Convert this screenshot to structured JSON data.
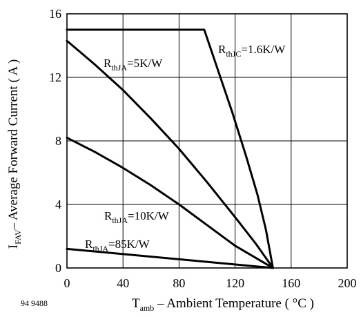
{
  "chart_data": {
    "type": "line",
    "figure_code": "94 9488",
    "xlabel": {
      "main": "T",
      "sub": "amb",
      "rest": " – Ambient Temperature ( °C )"
    },
    "ylabel": {
      "main": "I",
      "sub": "FAV",
      "rest": "– Average Forward Current ( A )"
    },
    "xlim": [
      0,
      200
    ],
    "ylim": [
      0,
      16
    ],
    "xticks": [
      0,
      40,
      80,
      120,
      160,
      200
    ],
    "yticks": [
      0,
      4,
      8,
      12,
      16
    ],
    "grid": true,
    "series": [
      {
        "label_main": "R",
        "label_sub": "thJC",
        "label_rest": "=1.6K/W",
        "points": [
          [
            0,
            15
          ],
          [
            98,
            15
          ],
          [
            108,
            12.4
          ],
          [
            118,
            9.8
          ],
          [
            128,
            7.0
          ],
          [
            136,
            4.6
          ],
          [
            142,
            2.4
          ],
          [
            147,
            0
          ]
        ]
      },
      {
        "label_main": "R",
        "label_sub": "thJA",
        "label_rest": "=5K/W",
        "points": [
          [
            0,
            14.3
          ],
          [
            20,
            12.8
          ],
          [
            40,
            11.2
          ],
          [
            60,
            9.4
          ],
          [
            80,
            7.5
          ],
          [
            100,
            5.4
          ],
          [
            120,
            3.2
          ],
          [
            135,
            1.5
          ],
          [
            147,
            0
          ]
        ]
      },
      {
        "label_main": "R",
        "label_sub": "thJA",
        "label_rest": "=10K/W",
        "points": [
          [
            0,
            8.2
          ],
          [
            20,
            7.3
          ],
          [
            40,
            6.3
          ],
          [
            60,
            5.2
          ],
          [
            80,
            4.0
          ],
          [
            100,
            2.7
          ],
          [
            120,
            1.4
          ],
          [
            147,
            0
          ]
        ]
      },
      {
        "label_main": "R",
        "label_sub": "thJA",
        "label_rest": "=85K/W",
        "points": [
          [
            0,
            1.2
          ],
          [
            147,
            0
          ]
        ]
      }
    ]
  }
}
